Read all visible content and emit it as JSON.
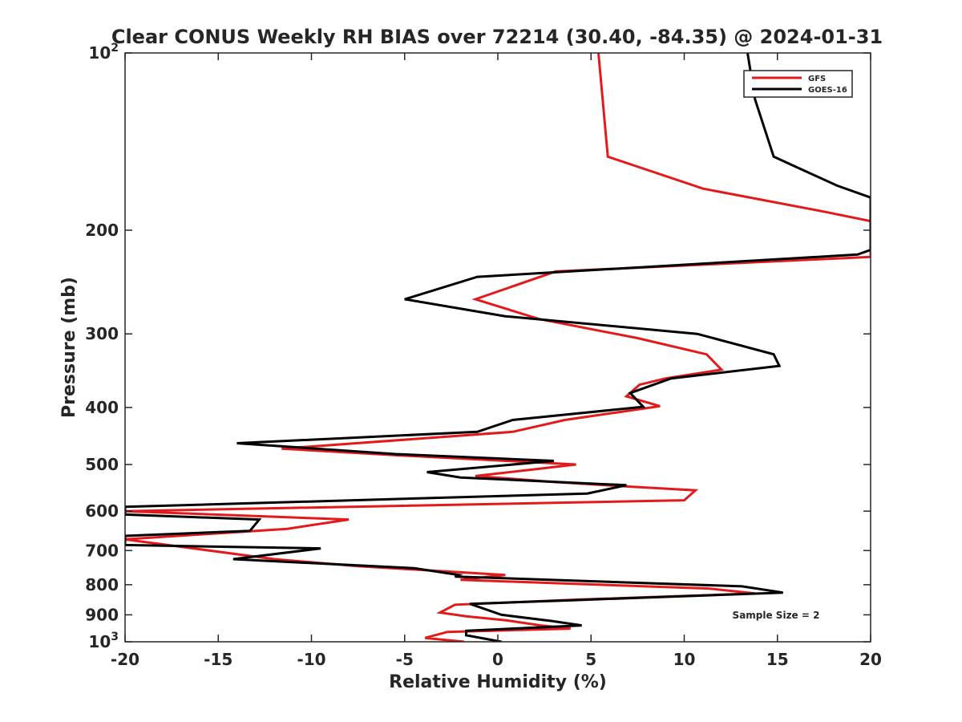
{
  "chart_data": {
    "type": "line",
    "title": "Clear CONUS Weekly RH BIAS over 72214 (30.40, -84.35) @ 2024-01-31",
    "xlabel": "Relative Humidity (%)",
    "ylabel": "Pressure (mb)",
    "xlim": [
      -20,
      20
    ],
    "ylim": [
      100,
      1000
    ],
    "yscale": "log",
    "ydirection": "reversed",
    "x_ticks": [
      -20,
      -15,
      -10,
      -5,
      0,
      5,
      10,
      15,
      20
    ],
    "x_tick_labels": [
      "-20",
      "-15",
      "-10",
      "-5",
      "0",
      "5",
      "10",
      "15",
      "20"
    ],
    "y_ticks": [
      100,
      200,
      300,
      400,
      500,
      600,
      700,
      800,
      900,
      1000
    ],
    "y_tick_labels": [
      {
        "base": "10",
        "exp": "2"
      },
      {
        "text": "200"
      },
      {
        "text": "300"
      },
      {
        "text": "400"
      },
      {
        "text": "500"
      },
      {
        "text": "600"
      },
      {
        "text": "700"
      },
      {
        "text": "800"
      },
      {
        "text": "900"
      },
      {
        "base": "10",
        "exp": "3"
      }
    ],
    "grid": false,
    "legend_position": "top-right",
    "annotation": "Sample Size = 2",
    "series": [
      {
        "name": "GFS",
        "color": "#e31a1c",
        "points": [
          [
            5.4,
            100
          ],
          [
            5.9,
            150
          ],
          [
            11,
            170
          ],
          [
            17.5,
            186
          ],
          [
            20,
            193
          ],
          [
            20,
            222
          ],
          [
            3.1,
            235
          ],
          [
            -1.2,
            262
          ],
          [
            2.2,
            283
          ],
          [
            7.5,
            305
          ],
          [
            11.2,
            325
          ],
          [
            12,
            345
          ],
          [
            9,
            357
          ],
          [
            7.6,
            366
          ],
          [
            6.9,
            383
          ],
          [
            8.7,
            398
          ],
          [
            3.6,
            420
          ],
          [
            0.8,
            440
          ],
          [
            -11.6,
            470
          ],
          [
            -5,
            483
          ],
          [
            -1.1,
            490
          ],
          [
            4.2,
            500
          ],
          [
            -1.2,
            523
          ],
          [
            2.9,
            535
          ],
          [
            7,
            545
          ],
          [
            10.6,
            553
          ],
          [
            10,
            575
          ],
          [
            -20,
            600
          ],
          [
            -8,
            620
          ],
          [
            -11.3,
            643
          ],
          [
            -20,
            670
          ],
          [
            -12,
            724
          ],
          [
            -7.5,
            744
          ],
          [
            -2,
            762
          ],
          [
            0.4,
            770
          ],
          [
            -2,
            785
          ],
          [
            11.3,
            812
          ],
          [
            13.8,
            828
          ],
          [
            4.3,
            848
          ],
          [
            -2.3,
            865
          ],
          [
            -3.1,
            892
          ],
          [
            -1.7,
            905
          ],
          [
            0.5,
            920
          ],
          [
            2.3,
            938
          ],
          [
            3.9,
            950
          ],
          [
            -2.7,
            962
          ],
          [
            -3.9,
            985
          ],
          [
            -1.8,
            1000
          ]
        ]
      },
      {
        "name": "GOES-16",
        "color": "#000000",
        "points": [
          [
            13.4,
            100
          ],
          [
            13.8,
            120
          ],
          [
            14.8,
            150
          ],
          [
            18.2,
            168
          ],
          [
            20,
            176
          ],
          [
            20,
            216
          ],
          [
            19.3,
            220
          ],
          [
            -1.1,
            240
          ],
          [
            -5,
            262
          ],
          [
            0.4,
            280
          ],
          [
            10.7,
            300
          ],
          [
            14.8,
            325
          ],
          [
            15.1,
            340
          ],
          [
            9.3,
            357
          ],
          [
            7.1,
            378
          ],
          [
            7.8,
            399
          ],
          [
            0.8,
            420
          ],
          [
            -1.1,
            440
          ],
          [
            -14,
            460
          ],
          [
            -5.5,
            480
          ],
          [
            3,
            493
          ],
          [
            -3.8,
            515
          ],
          [
            -2,
            526
          ],
          [
            6.9,
            542
          ],
          [
            4.8,
            560
          ],
          [
            -20,
            590
          ],
          [
            -20,
            608
          ],
          [
            -12.8,
            620
          ],
          [
            -13.3,
            648
          ],
          [
            -20,
            661
          ],
          [
            -20,
            685
          ],
          [
            -9.5,
            694
          ],
          [
            -14.2,
            724
          ],
          [
            -4.5,
            750
          ],
          [
            -2.1,
            770
          ],
          [
            -2.3,
            775
          ],
          [
            13.1,
            805
          ],
          [
            15.3,
            825
          ],
          [
            4,
            850
          ],
          [
            -1.5,
            862
          ],
          [
            0.2,
            900
          ],
          [
            2.9,
            922
          ],
          [
            4.5,
            938
          ],
          [
            -1.7,
            958
          ],
          [
            -1.7,
            975
          ],
          [
            0.2,
            1000
          ]
        ]
      }
    ]
  }
}
